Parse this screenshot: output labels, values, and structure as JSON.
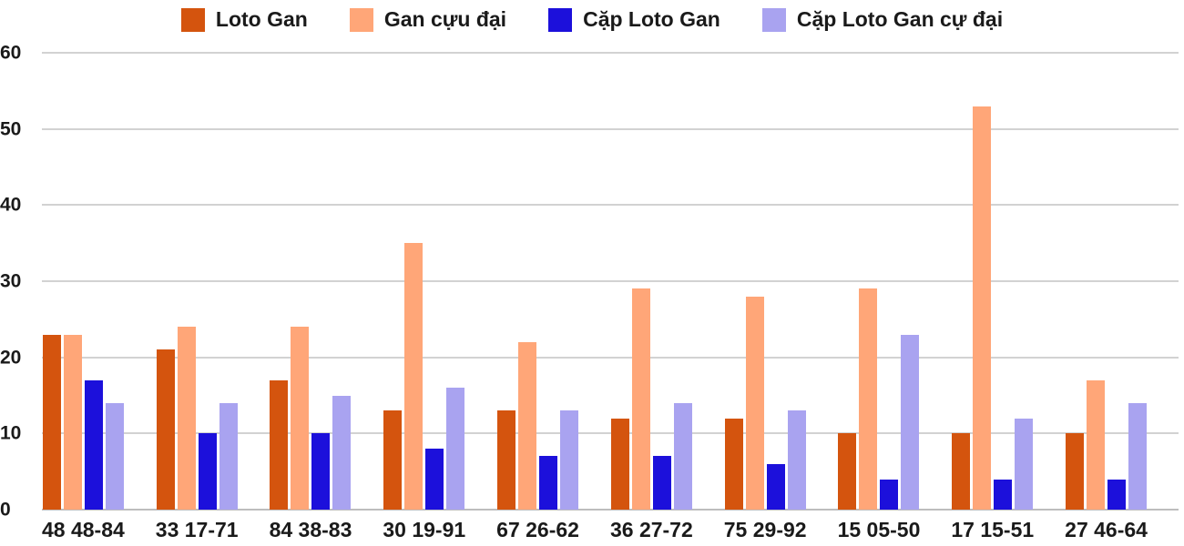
{
  "chart_data": {
    "type": "bar",
    "categories": [
      "48 48-84",
      "33 17-71",
      "84 38-83",
      "30 19-91",
      "67 26-62",
      "36 27-72",
      "75 29-92",
      "15 05-50",
      "17 15-51",
      "27 46-64"
    ],
    "series": [
      {
        "name": "Loto Gan",
        "color": "#d4540e",
        "values": [
          23,
          21,
          17,
          13,
          13,
          12,
          12,
          10,
          10,
          10
        ]
      },
      {
        "name": "Gan cựu đại",
        "color": "#ffa678",
        "values": [
          23,
          24,
          24,
          35,
          22,
          29,
          28,
          29,
          53,
          17
        ]
      },
      {
        "name": "Cặp Loto Gan",
        "color": "#1c10db",
        "values": [
          17,
          10,
          10,
          8,
          7,
          7,
          6,
          4,
          4,
          4
        ]
      },
      {
        "name": "Cặp Loto Gan cự đại",
        "color": "#a9a3f0",
        "values": [
          14,
          14,
          15,
          16,
          13,
          14,
          13,
          23,
          12,
          14
        ]
      }
    ],
    "title": "",
    "xlabel": "",
    "ylabel": "",
    "ylim": [
      0,
      60
    ],
    "yticks": [
      0,
      10,
      20,
      30,
      40,
      50,
      60
    ],
    "grid": true,
    "legend_position": "top",
    "background_color": "#ffffff",
    "gridline_color": "#d2d2d2",
    "text_color": "#1a1a1a"
  }
}
